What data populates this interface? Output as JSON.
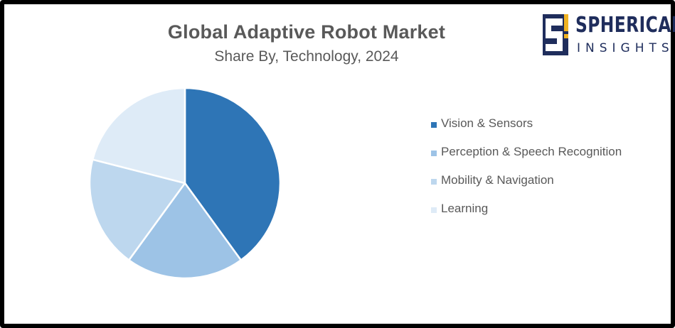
{
  "chart_data": {
    "type": "pie",
    "title": "Global Adaptive Robot Market",
    "subtitle": "Share By, Technology, 2024",
    "legend_position": "right",
    "series": [
      {
        "name": "Vision & Sensors",
        "value": 40,
        "color": "#2e75b6"
      },
      {
        "name": "Perception & Speech Recognition",
        "value": 20,
        "color": "#9dc3e6"
      },
      {
        "name": "Mobility & Navigation",
        "value": 19,
        "color": "#bdd7ee"
      },
      {
        "name": "Learning",
        "value": 21,
        "color": "#deebf7"
      }
    ]
  },
  "logo": {
    "line1": "SPHERICAL",
    "line2": "INSIGHTS",
    "color": "#1f2d5c",
    "accent_color": "#f0b323"
  }
}
